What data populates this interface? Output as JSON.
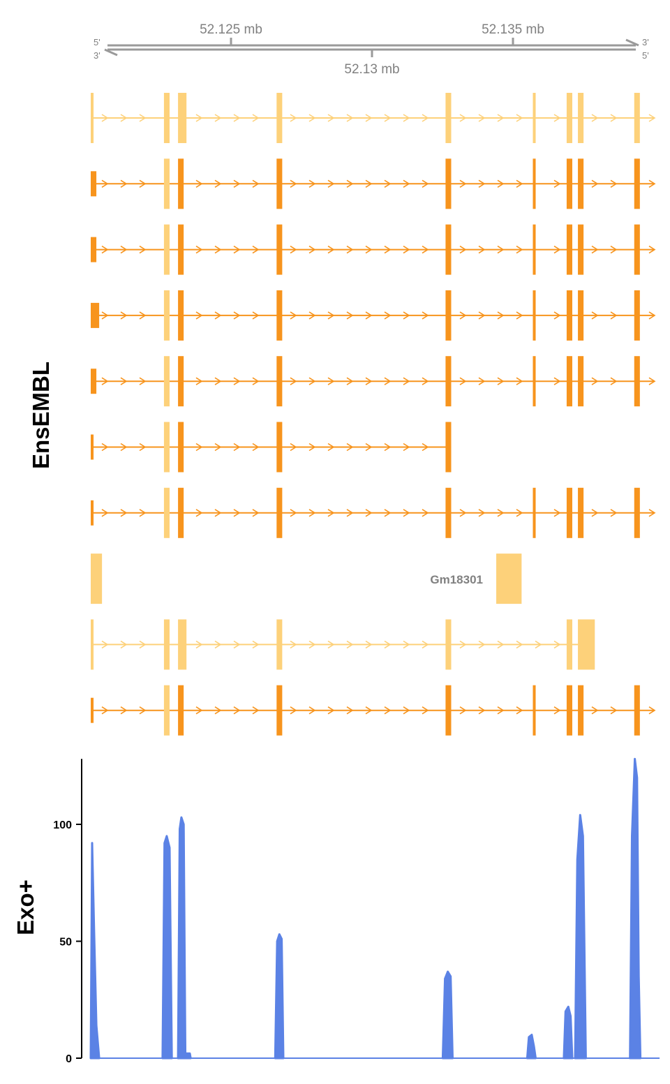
{
  "colors": {
    "axis": "#9a9a9a",
    "axis_text": "#808080",
    "utr": "#FDD17A",
    "cds": "#F7941D",
    "noncoding": "#FDD17A",
    "coverage": "#5B82E5",
    "label": "#000000"
  },
  "chart_data": [
    {
      "type": "genome-axis",
      "range_mb": [
        52.1175,
        52.1415
      ],
      "ticks_top": [
        {
          "pos": 52.125,
          "label": "52.125 mb"
        },
        {
          "pos": 52.135,
          "label": "52.135 mb"
        }
      ],
      "ticks_bottom": [
        {
          "pos": 52.13,
          "label": "52.13 mb"
        }
      ],
      "strand_labels": {
        "top_left": "5'",
        "bottom_left": "3'",
        "top_right": "3'",
        "bottom_right": "5'"
      }
    },
    {
      "type": "gene-track",
      "track_label": "EnsEMBL",
      "gene_labels": [
        {
          "text": "Gm18301"
        }
      ],
      "transcripts": [
        {
          "kind": "noncoding",
          "arrow_from": 52.118,
          "line_to": 52.1415,
          "exons": [
            [
              52.117,
              52.1171,
              "utr"
            ],
            [
              52.1196,
              52.1198,
              "utr"
            ],
            [
              52.1201,
              52.1204,
              "utr"
            ],
            [
              52.1236,
              52.1238,
              "utr"
            ],
            [
              52.1296,
              52.1298,
              "utr"
            ],
            [
              52.1327,
              52.1328,
              "utr"
            ],
            [
              52.1339,
              52.1341,
              "utr"
            ],
            [
              52.1343,
              52.1345,
              "utr"
            ],
            [
              52.1363,
              52.1365,
              "utr"
            ]
          ]
        },
        {
          "kind": "coding",
          "arrow_from": 52.118,
          "line_to": 52.1415,
          "exons": [
            [
              52.117,
              52.1172,
              "cds"
            ],
            [
              52.1196,
              52.1198,
              "utr"
            ],
            [
              52.1201,
              52.1203,
              "cds"
            ],
            [
              52.1236,
              52.1238,
              "cds"
            ],
            [
              52.1296,
              52.1298,
              "cds"
            ],
            [
              52.1327,
              52.1328,
              "cds"
            ],
            [
              52.1339,
              52.1341,
              "cds"
            ],
            [
              52.1343,
              52.1345,
              "cds"
            ],
            [
              52.1363,
              52.1365,
              "cds"
            ]
          ]
        },
        {
          "kind": "coding",
          "arrow_from": 52.118,
          "line_to": 52.1415,
          "exons": [
            [
              52.117,
              52.1172,
              "cds"
            ],
            [
              52.1196,
              52.1198,
              "utr"
            ],
            [
              52.1201,
              52.1203,
              "cds"
            ],
            [
              52.1236,
              52.1238,
              "cds"
            ],
            [
              52.1296,
              52.1298,
              "cds"
            ],
            [
              52.1327,
              52.1328,
              "cds"
            ],
            [
              52.1339,
              52.1341,
              "cds"
            ],
            [
              52.1343,
              52.1345,
              "cds"
            ],
            [
              52.1363,
              52.1365,
              "cds"
            ]
          ]
        },
        {
          "kind": "coding",
          "arrow_from": 52.118,
          "line_to": 52.1415,
          "exons": [
            [
              52.117,
              52.1173,
              "cds"
            ],
            [
              52.1196,
              52.1198,
              "utr"
            ],
            [
              52.1201,
              52.1203,
              "cds"
            ],
            [
              52.1236,
              52.1238,
              "cds"
            ],
            [
              52.1296,
              52.1298,
              "cds"
            ],
            [
              52.1327,
              52.1328,
              "cds"
            ],
            [
              52.1339,
              52.1341,
              "cds"
            ],
            [
              52.1343,
              52.1345,
              "cds"
            ],
            [
              52.1363,
              52.1365,
              "cds"
            ]
          ]
        },
        {
          "kind": "coding",
          "arrow_from": 52.118,
          "line_to": 52.1415,
          "exons": [
            [
              52.117,
              52.1172,
              "cds"
            ],
            [
              52.1196,
              52.1198,
              "utr"
            ],
            [
              52.1201,
              52.1203,
              "cds"
            ],
            [
              52.1236,
              52.1238,
              "cds"
            ],
            [
              52.1296,
              52.1298,
              "cds"
            ],
            [
              52.1327,
              52.1328,
              "cds"
            ],
            [
              52.1339,
              52.1341,
              "cds"
            ],
            [
              52.1343,
              52.1345,
              "cds"
            ],
            [
              52.1363,
              52.1365,
              "cds"
            ]
          ]
        },
        {
          "kind": "coding",
          "arrow_from": 52.118,
          "line_to": 52.1298,
          "exons": [
            [
              52.117,
              52.1171,
              "cds"
            ],
            [
              52.1196,
              52.1198,
              "utr"
            ],
            [
              52.1201,
              52.1203,
              "cds"
            ],
            [
              52.1236,
              52.1238,
              "cds"
            ],
            [
              52.1296,
              52.1298,
              "cds"
            ]
          ]
        },
        {
          "kind": "coding",
          "arrow_from": 52.118,
          "line_to": 52.1415,
          "exons": [
            [
              52.117,
              52.1171,
              "cds"
            ],
            [
              52.1196,
              52.1198,
              "utr"
            ],
            [
              52.1201,
              52.1203,
              "cds"
            ],
            [
              52.1236,
              52.1238,
              "cds"
            ],
            [
              52.1296,
              52.1298,
              "cds"
            ],
            [
              52.1327,
              52.1328,
              "cds"
            ],
            [
              52.1339,
              52.1341,
              "cds"
            ],
            [
              52.1343,
              52.1345,
              "cds"
            ],
            [
              52.1363,
              52.1365,
              "cds"
            ]
          ]
        },
        {
          "kind": "blocks",
          "exons": [
            [
              52.117,
              52.1174,
              "utr"
            ],
            [
              52.1314,
              52.1323,
              "utr"
            ]
          ],
          "label_index": 0
        },
        {
          "kind": "noncoding",
          "arrow_from": 52.118,
          "line_to": 52.1343,
          "exons": [
            [
              52.117,
              52.1171,
              "utr"
            ],
            [
              52.1196,
              52.1198,
              "utr"
            ],
            [
              52.1201,
              52.1204,
              "utr"
            ],
            [
              52.1236,
              52.1238,
              "utr"
            ],
            [
              52.1296,
              52.1298,
              "utr"
            ],
            [
              52.1339,
              52.1341,
              "utr"
            ],
            [
              52.1343,
              52.1349,
              "utr"
            ]
          ]
        },
        {
          "kind": "coding",
          "arrow_from": 52.118,
          "line_to": 52.1415,
          "exons": [
            [
              52.117,
              52.1171,
              "cds"
            ],
            [
              52.1196,
              52.1198,
              "utr"
            ],
            [
              52.1201,
              52.1203,
              "cds"
            ],
            [
              52.1236,
              52.1238,
              "cds"
            ],
            [
              52.1296,
              52.1298,
              "cds"
            ],
            [
              52.1327,
              52.1328,
              "cds"
            ],
            [
              52.1339,
              52.1341,
              "cds"
            ],
            [
              52.1343,
              52.1345,
              "cds"
            ],
            [
              52.1363,
              52.1365,
              "cds"
            ]
          ]
        }
      ]
    },
    {
      "type": "area",
      "track_label": "Exo+",
      "ylim": [
        0,
        128
      ],
      "yticks": [
        0,
        50,
        100
      ],
      "baseline_x": [
        52.117,
        52.1372
      ],
      "peaks": [
        {
          "x": [
            52.117,
            52.11705,
            52.11712,
            52.1172,
            52.1173
          ],
          "y": [
            0,
            92,
            55,
            14,
            0
          ]
        },
        {
          "x": [
            52.11955,
            52.11962,
            52.1197,
            52.1198,
            52.11988
          ],
          "y": [
            0,
            92,
            95,
            90,
            0
          ]
        },
        {
          "x": [
            52.1201,
            52.12016,
            52.12022,
            52.1203,
            52.12036
          ],
          "y": [
            0,
            98,
            103,
            100,
            0
          ]
        },
        {
          "x": [
            52.12036,
            52.1204,
            52.12052,
            52.12055
          ],
          "y": [
            2,
            2,
            2,
            0
          ]
        },
        {
          "x": [
            52.12355,
            52.12362,
            52.1237,
            52.12378,
            52.12384
          ],
          "y": [
            0,
            50,
            53,
            51,
            0
          ]
        },
        {
          "x": [
            52.1295,
            52.12958,
            52.12968,
            52.12978,
            52.12985
          ],
          "y": [
            0,
            34,
            37,
            35,
            0
          ]
        },
        {
          "x": [
            52.1325,
            52.13256,
            52.13266,
            52.13274,
            52.1328
          ],
          "y": [
            0,
            9,
            10,
            5,
            0
          ]
        },
        {
          "x": [
            52.1338,
            52.13386,
            52.13396,
            52.13404,
            52.1341
          ],
          "y": [
            0,
            20,
            22,
            18,
            0
          ]
        },
        {
          "x": [
            52.1342,
            52.13428,
            52.13438,
            52.13448,
            52.13458
          ],
          "y": [
            0,
            85,
            104,
            95,
            0
          ]
        },
        {
          "x": [
            52.13615,
            52.13622,
            52.13632,
            52.1364,
            52.13646,
            52.13652
          ],
          "y": [
            0,
            95,
            128,
            120,
            35,
            0
          ]
        }
      ]
    }
  ]
}
